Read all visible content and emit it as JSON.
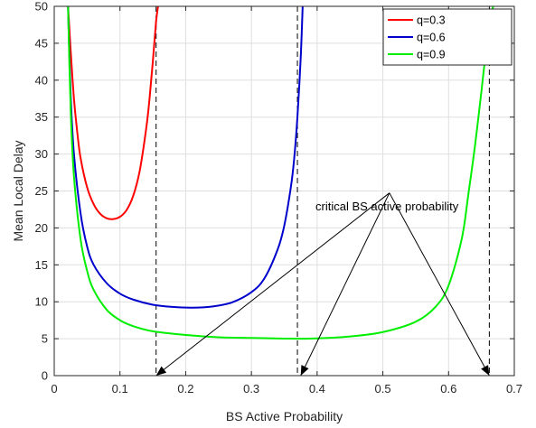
{
  "chart_data": {
    "type": "line",
    "title": "",
    "xlabel": "BS Active Probability",
    "ylabel": "Mean Local Delay",
    "xlim": [
      0,
      0.7
    ],
    "ylim": [
      0,
      50
    ],
    "xticks": [
      0,
      0.1,
      0.2,
      0.3,
      0.4,
      0.5,
      0.6,
      0.7
    ],
    "xtick_labels": [
      "0",
      "0.1",
      "0.2",
      "0.3",
      "0.4",
      "0.5",
      "0.6",
      "0.7"
    ],
    "yticks": [
      0,
      5,
      10,
      15,
      20,
      25,
      30,
      35,
      40,
      45,
      50
    ],
    "ytick_labels": [
      "0",
      "5",
      "10",
      "15",
      "20",
      "25",
      "30",
      "35",
      "40",
      "45",
      "50"
    ],
    "grid": true,
    "legend_position": "top-right",
    "series": [
      {
        "name": "q=0.3",
        "color": "#ff0000",
        "x": [
          0.021,
          0.025,
          0.03,
          0.035,
          0.04,
          0.05,
          0.06,
          0.07,
          0.08,
          0.09,
          0.1,
          0.11,
          0.12,
          0.13,
          0.14,
          0.145,
          0.15,
          0.155,
          0.158
        ],
        "y": [
          50,
          44,
          37.5,
          33,
          29.5,
          25.5,
          23.2,
          21.9,
          21.3,
          21.2,
          21.5,
          22.4,
          24.3,
          27.7,
          33.5,
          37.5,
          42.5,
          48,
          50
        ]
      },
      {
        "name": "q=0.6",
        "color": "#0000cc",
        "x": [
          0.021,
          0.025,
          0.03,
          0.04,
          0.05,
          0.06,
          0.08,
          0.1,
          0.12,
          0.15,
          0.18,
          0.21,
          0.24,
          0.27,
          0.3,
          0.32,
          0.34,
          0.35,
          0.36,
          0.365,
          0.37,
          0.375,
          0.378
        ],
        "y": [
          50,
          38,
          30,
          22,
          17.5,
          15,
          12.5,
          11.1,
          10.3,
          9.6,
          9.3,
          9.2,
          9.35,
          9.9,
          11.3,
          13.2,
          17.1,
          20.3,
          25.5,
          29.3,
          35,
          43,
          50
        ]
      },
      {
        "name": "q=0.9",
        "color": "#00ee00",
        "x": [
          0.021,
          0.025,
          0.03,
          0.04,
          0.05,
          0.06,
          0.08,
          0.1,
          0.12,
          0.15,
          0.2,
          0.25,
          0.3,
          0.35,
          0.37,
          0.4,
          0.45,
          0.5,
          0.55,
          0.58,
          0.6,
          0.62,
          0.63,
          0.64,
          0.65,
          0.655,
          0.66,
          0.665,
          0.668
        ],
        "y": [
          50,
          36,
          27,
          18.5,
          14.2,
          11.6,
          8.9,
          7.5,
          6.7,
          6.0,
          5.5,
          5.2,
          5.1,
          5.02,
          5.0,
          5.05,
          5.3,
          5.9,
          7.3,
          9.3,
          12.2,
          18.5,
          24.5,
          31,
          38.5,
          42.5,
          46,
          49,
          50
        ]
      }
    ],
    "vertical_lines": [
      {
        "x": 0.155,
        "style": "dashed"
      },
      {
        "x": 0.37,
        "style": "dashed"
      },
      {
        "x": 0.662,
        "style": "dashed"
      }
    ],
    "annotation": {
      "text": "critical BS active probability",
      "anchor": [
        0.51,
        26.2
      ],
      "arrows_to": [
        [
          0.155,
          0
        ],
        [
          0.375,
          0
        ],
        [
          0.662,
          0
        ]
      ]
    }
  }
}
